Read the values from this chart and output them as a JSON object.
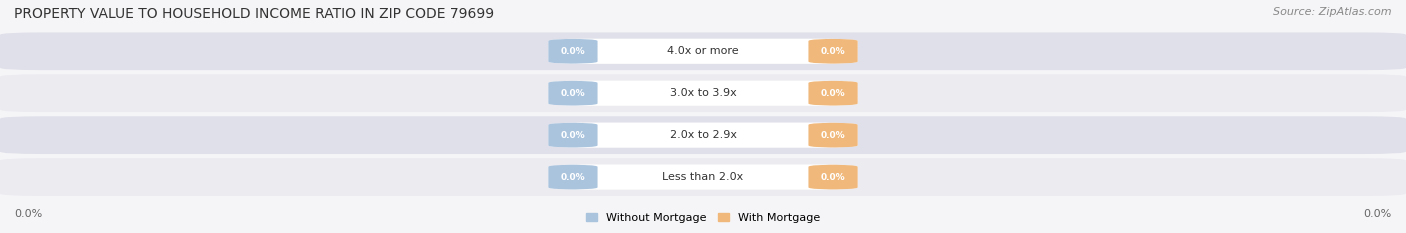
{
  "title": "PROPERTY VALUE TO HOUSEHOLD INCOME RATIO IN ZIP CODE 79699",
  "source": "Source: ZipAtlas.com",
  "categories": [
    "Less than 2.0x",
    "2.0x to 2.9x",
    "3.0x to 3.9x",
    "4.0x or more"
  ],
  "without_mortgage": [
    0.0,
    0.0,
    0.0,
    0.0
  ],
  "with_mortgage": [
    0.0,
    0.0,
    0.0,
    0.0
  ],
  "without_mortgage_color": "#aac4de",
  "with_mortgage_color": "#f0b87a",
  "row_bg_color_light": "#ebebf0",
  "row_bg_color_dark": "#e0e0ea",
  "fig_bg_color": "#f5f5f8",
  "title_fontsize": 10,
  "source_fontsize": 8,
  "figsize": [
    14.06,
    2.33
  ],
  "dpi": 100,
  "axis_label_left": "0.0%",
  "axis_label_right": "0.0%",
  "legend_labels": [
    "Without Mortgage",
    "With Mortgage"
  ]
}
